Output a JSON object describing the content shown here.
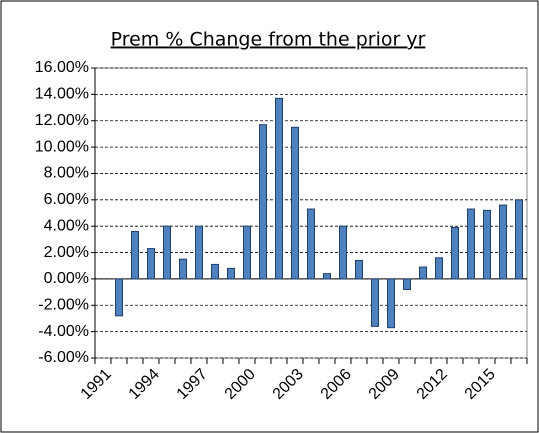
{
  "chart_data": {
    "type": "bar",
    "title": "Prem % Change from the prior yr",
    "categories": [
      "1991",
      null,
      null,
      "1994",
      null,
      null,
      "1997",
      null,
      null,
      "2000",
      null,
      null,
      "2003",
      null,
      null,
      "2006",
      null,
      null,
      "2009",
      null,
      null,
      "2012",
      null,
      null,
      "2015",
      null,
      null
    ],
    "values": [
      null,
      -2.8,
      3.6,
      2.3,
      4.0,
      1.5,
      4.0,
      1.1,
      0.8,
      4.0,
      11.7,
      13.7,
      11.5,
      5.3,
      0.4,
      4.0,
      1.4,
      -3.6,
      -3.7,
      -0.8,
      0.9,
      1.6,
      3.9,
      5.3,
      5.2,
      5.6,
      6.0
    ],
    "color": "#4f81bd",
    "edge_color": "#1f3f6e",
    "ylim": [
      -6,
      16
    ],
    "yticks": [
      {
        "value": -6,
        "label": "-6.00%"
      },
      {
        "value": -4,
        "label": "-4.00%"
      },
      {
        "value": -2,
        "label": "-2.00%"
      },
      {
        "value": 0,
        "label": "0.00%"
      },
      {
        "value": 2,
        "label": "2.00%"
      },
      {
        "value": 4,
        "label": "4.00%"
      },
      {
        "value": 6,
        "label": "6.00%"
      },
      {
        "value": 8,
        "label": "8.00%"
      },
      {
        "value": 10,
        "label": "10.00%"
      },
      {
        "value": 12,
        "label": "12.00%"
      },
      {
        "value": 14,
        "label": "14.00%"
      },
      {
        "value": 16,
        "label": "16.00%"
      }
    ],
    "grid": true
  }
}
